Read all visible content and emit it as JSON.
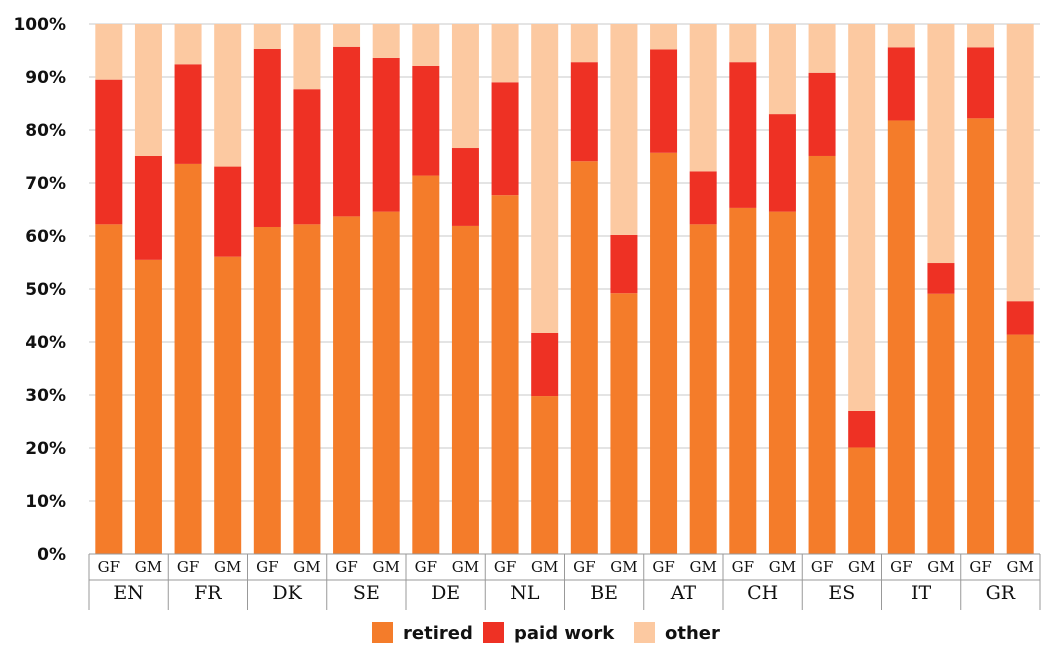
{
  "chart_data": {
    "type": "bar",
    "stacked": true,
    "percent": true,
    "grid": true,
    "legend_position": "bottom",
    "ylim": [
      0,
      100
    ],
    "y_ticks": [
      "0%",
      "10%",
      "20%",
      "30%",
      "40%",
      "50%",
      "60%",
      "70%",
      "80%",
      "90%",
      "100%"
    ],
    "sub_categories": [
      "GF",
      "GM"
    ],
    "groups": [
      "EN",
      "FR",
      "DK",
      "SE",
      "DE",
      "NL",
      "BE",
      "AT",
      "CH",
      "ES",
      "IT",
      "GR"
    ],
    "series": [
      {
        "name": "retired",
        "color": "#f47c2a",
        "values": [
          62.2,
          55.5,
          73.6,
          56.1,
          61.7,
          62.2,
          63.7,
          64.6,
          71.4,
          61.9,
          67.7,
          29.8,
          74.1,
          49.2,
          75.7,
          62.2,
          65.3,
          64.6,
          75.1,
          20.1,
          81.8,
          49.1,
          82.2,
          41.4
        ]
      },
      {
        "name": "paid work",
        "color": "#ee3124",
        "values": [
          27.3,
          19.6,
          18.8,
          17.0,
          33.6,
          25.5,
          32.0,
          29.0,
          20.7,
          14.7,
          21.3,
          11.9,
          18.7,
          11.0,
          19.5,
          10.0,
          27.5,
          18.4,
          15.7,
          6.9,
          13.8,
          5.8,
          13.4,
          6.3
        ]
      },
      {
        "name": "other",
        "color": "#fcc9a1",
        "values": [
          10.5,
          24.9,
          7.6,
          26.9,
          4.7,
          12.3,
          4.3,
          6.4,
          7.9,
          23.4,
          11.0,
          58.3,
          7.2,
          39.8,
          4.8,
          27.8,
          7.2,
          17.0,
          9.2,
          73.0,
          4.4,
          45.1,
          4.4,
          52.3
        ]
      }
    ]
  }
}
